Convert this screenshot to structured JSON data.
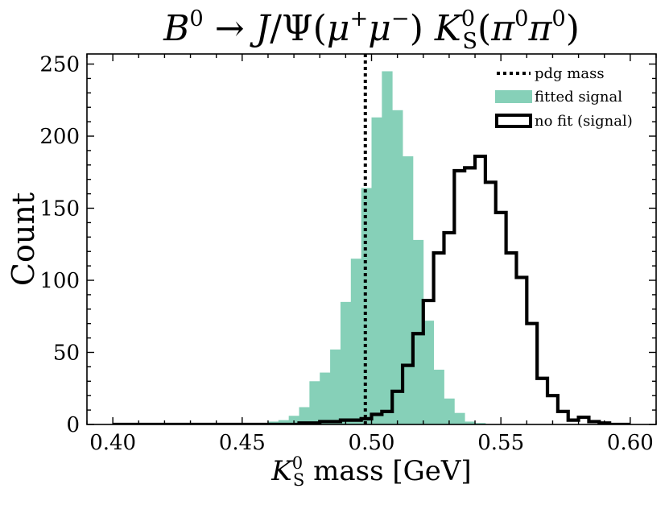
{
  "chart_data": {
    "type": "histogram",
    "title": {
      "parts": [
        {
          "text": "B",
          "style": "italic"
        },
        {
          "text": "0",
          "style": "sup"
        },
        {
          "text": " → ",
          "style": "normal"
        },
        {
          "text": "J",
          "style": "italic"
        },
        {
          "text": "/Ψ(",
          "style": "normal"
        },
        {
          "text": "μ",
          "style": "italic"
        },
        {
          "text": "+",
          "style": "sup"
        },
        {
          "text": "μ",
          "style": "italic"
        },
        {
          "text": "−",
          "style": "sup"
        },
        {
          "text": ")  ",
          "style": "normal"
        },
        {
          "text": "K",
          "style": "italic"
        },
        {
          "text": "0",
          "style": "sup"
        },
        {
          "text": "S",
          "style": "sub"
        },
        {
          "text": "(",
          "style": "normal"
        },
        {
          "text": "π",
          "style": "italic"
        },
        {
          "text": "0",
          "style": "sup"
        },
        {
          "text": "π",
          "style": "italic"
        },
        {
          "text": "0",
          "style": "sup"
        },
        {
          "text": ")",
          "style": "normal"
        }
      ]
    },
    "xlabel": {
      "parts": [
        {
          "text": "K",
          "style": "italic"
        },
        {
          "text": "0",
          "style": "sup"
        },
        {
          "text": "S",
          "style": "sub"
        },
        {
          "text": " mass [GeV]",
          "style": "normal"
        }
      ]
    },
    "ylabel": "Count",
    "xlim": [
      0.39,
      0.61
    ],
    "ylim": [
      0,
      257
    ],
    "xticks": [
      0.4,
      0.45,
      0.5,
      0.55,
      0.6
    ],
    "xtick_labels": [
      "0.40",
      "0.45",
      "0.50",
      "0.55",
      "0.60"
    ],
    "yticks": [
      0,
      50,
      100,
      150,
      200,
      250
    ],
    "ytick_labels": [
      "0",
      "50",
      "100",
      "150",
      "200",
      "250"
    ],
    "bins": {
      "start": 0.4,
      "width": 0.004,
      "count": 50
    },
    "pdg_mass": 0.4976,
    "series": [
      {
        "name": "fitted signal",
        "style": "filled",
        "color": "#86d0b8",
        "counts": [
          0,
          0,
          0,
          0,
          0,
          0,
          0,
          0,
          0,
          0,
          0,
          0,
          0,
          0,
          1,
          2,
          3,
          6,
          12,
          30,
          36,
          52,
          85,
          115,
          164,
          213,
          245,
          218,
          186,
          128,
          72,
          38,
          18,
          8,
          2,
          1,
          0,
          0,
          0,
          0,
          0,
          0,
          0,
          0,
          0,
          0,
          0,
          0,
          0,
          0
        ]
      },
      {
        "name": "no fit (signal)",
        "style": "step",
        "color": "#000000",
        "counts": [
          0,
          0,
          0,
          0,
          0,
          0,
          0,
          0,
          0,
          0,
          0,
          0,
          0,
          0,
          0,
          0,
          0,
          0,
          1,
          1,
          2,
          2,
          3,
          3,
          4,
          7,
          9,
          23,
          41,
          63,
          86,
          119,
          133,
          176,
          178,
          186,
          168,
          147,
          119,
          102,
          70,
          32,
          20,
          9,
          3,
          5,
          2,
          1,
          0,
          0
        ]
      }
    ],
    "legend": {
      "position": "upper-right",
      "entries": [
        {
          "label": "pdg mass",
          "kind": "dotted-line"
        },
        {
          "label": "fitted signal",
          "kind": "filled"
        },
        {
          "label": "no fit (signal)",
          "kind": "outline"
        }
      ]
    },
    "grid": false
  }
}
